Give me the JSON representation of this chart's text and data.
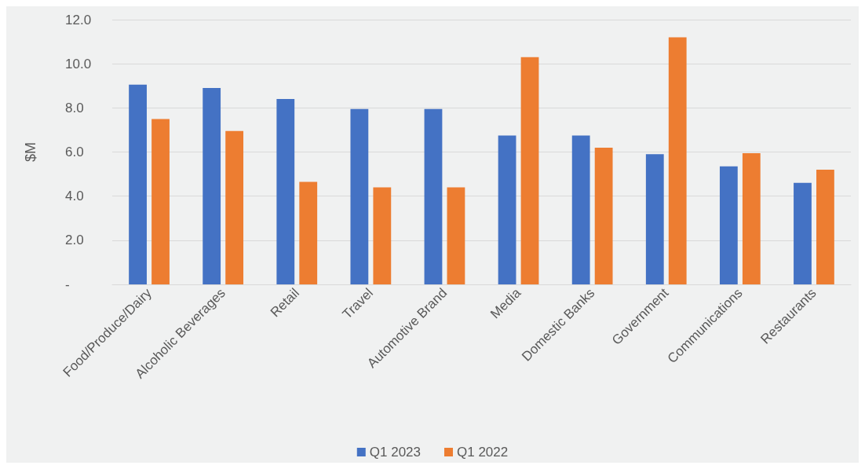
{
  "chart_data": {
    "type": "bar",
    "ylabel": "$M",
    "categories": [
      "Food/Produce/Dairy",
      "Alcoholic Beverages",
      "Retail",
      "Travel",
      "Automotive Brand",
      "Media",
      "Domestic Banks",
      "Government",
      "Communications",
      "Restaurants"
    ],
    "series": [
      {
        "name": "Q1 2023",
        "color": "#4472c4",
        "values": [
          9.05,
          8.9,
          8.4,
          7.95,
          7.95,
          6.75,
          6.75,
          5.9,
          5.35,
          4.6
        ]
      },
      {
        "name": "Q1 2022",
        "color": "#ed7d31",
        "values": [
          7.5,
          6.95,
          4.65,
          4.4,
          4.4,
          10.3,
          6.2,
          11.2,
          5.95,
          5.2
        ]
      }
    ],
    "ylim": [
      0,
      12
    ],
    "yticks": [
      {
        "value": 0,
        "label": "-"
      },
      {
        "value": 2,
        "label": "2.0"
      },
      {
        "value": 4,
        "label": "4.0"
      },
      {
        "value": 6,
        "label": "6.0"
      },
      {
        "value": 8,
        "label": "8.0"
      },
      {
        "value": 10,
        "label": "10.0"
      },
      {
        "value": 12,
        "label": "12.0"
      }
    ],
    "grid": "y",
    "legend": "bottom"
  }
}
